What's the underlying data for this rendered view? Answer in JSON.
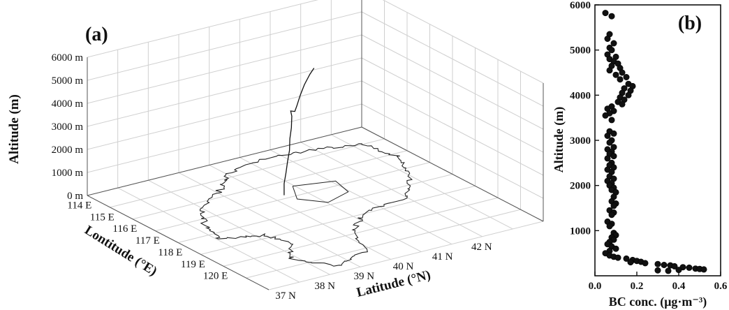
{
  "chart_data": [
    {
      "panel": "(a)",
      "type": "line",
      "projection": "3d",
      "xlabel": "Lontitude (°E)",
      "ylabel": "Latitude (°N)",
      "zlabel": "Altitude (m)",
      "x_ticks": [
        "114 E",
        "115 E",
        "116 E",
        "117 E",
        "118 E",
        "119 E",
        "120 E"
      ],
      "y_ticks": [
        "37 N",
        "38 N",
        "39 N",
        "40 N",
        "41 N",
        "42 N"
      ],
      "z_ticks": [
        "0 m",
        "1000 m",
        "2000 m",
        "3000 m",
        "4000 m",
        "5000 m",
        "6000 m"
      ],
      "xlim": [
        113.5,
        121.5
      ],
      "ylim": [
        36.5,
        43.5
      ],
      "zlim": [
        0,
        6000
      ],
      "grid": true,
      "series": [
        {
          "values": [
            [
              116.3,
              39.9,
              0
            ],
            [
              116.3,
              39.9,
              500
            ],
            [
              116.35,
              39.92,
              1000
            ],
            [
              116.4,
              39.93,
              1500
            ],
            [
              116.45,
              39.95,
              2000
            ],
            [
              116.45,
              39.96,
              2500
            ],
            [
              116.5,
              39.97,
              3000
            ],
            [
              116.5,
              39.98,
              3500
            ],
            [
              116.45,
              39.98,
              3700
            ],
            [
              116.6,
              40.0,
              3750
            ],
            [
              116.65,
              40.02,
              4000
            ],
            [
              116.75,
              40.05,
              4500
            ],
            [
              116.85,
              40.1,
              5000
            ],
            [
              117.0,
              40.15,
              5500
            ],
            [
              117.1,
              40.2,
              5800
            ]
          ]
        }
      ]
    },
    {
      "panel": "(b)",
      "type": "scatter",
      "xlabel": "BC conc. (μg·m⁻³)",
      "ylabel": "Altitude (m)",
      "xlim": [
        0,
        0.6
      ],
      "ylim": [
        0,
        6000
      ],
      "x_ticks": [
        "0.0",
        "0.2",
        "0.4",
        "0.6"
      ],
      "y_ticks": [
        "1000",
        "2000",
        "3000",
        "4000",
        "5000",
        "6000"
      ],
      "series": [
        {
          "values": [
            [
              0.05,
              5820
            ],
            [
              0.08,
              5750
            ],
            [
              0.07,
              5350
            ],
            [
              0.06,
              5250
            ],
            [
              0.09,
              5150
            ],
            [
              0.07,
              5050
            ],
            [
              0.08,
              5000
            ],
            [
              0.06,
              4900
            ],
            [
              0.1,
              4850
            ],
            [
              0.07,
              4800
            ],
            [
              0.09,
              4750
            ],
            [
              0.11,
              4700
            ],
            [
              0.08,
              4650
            ],
            [
              0.12,
              4600
            ],
            [
              0.07,
              4550
            ],
            [
              0.13,
              4500
            ],
            [
              0.1,
              4450
            ],
            [
              0.15,
              4400
            ],
            [
              0.12,
              4350
            ],
            [
              0.16,
              4250
            ],
            [
              0.18,
              4200
            ],
            [
              0.14,
              4150
            ],
            [
              0.17,
              4100
            ],
            [
              0.13,
              4050
            ],
            [
              0.16,
              4000
            ],
            [
              0.12,
              3950
            ],
            [
              0.14,
              3900
            ],
            [
              0.11,
              3850
            ],
            [
              0.13,
              3800
            ],
            [
              0.08,
              3750
            ],
            [
              0.06,
              3700
            ],
            [
              0.09,
              3650
            ],
            [
              0.07,
              3600
            ],
            [
              0.05,
              3550
            ],
            [
              0.08,
              3450
            ],
            [
              0.07,
              3200
            ],
            [
              0.09,
              3150
            ],
            [
              0.06,
              3100
            ],
            [
              0.08,
              3000
            ],
            [
              0.07,
              2950
            ],
            [
              0.09,
              2850
            ],
            [
              0.06,
              2800
            ],
            [
              0.08,
              2750
            ],
            [
              0.07,
              2700
            ],
            [
              0.09,
              2650
            ],
            [
              0.06,
              2600
            ],
            [
              0.08,
              2500
            ],
            [
              0.07,
              2450
            ],
            [
              0.09,
              2400
            ],
            [
              0.06,
              2350
            ],
            [
              0.08,
              2300
            ],
            [
              0.07,
              2200
            ],
            [
              0.09,
              2150
            ],
            [
              0.06,
              2100
            ],
            [
              0.08,
              2050
            ],
            [
              0.07,
              2000
            ],
            [
              0.09,
              1950
            ],
            [
              0.08,
              1900
            ],
            [
              0.1,
              1850
            ],
            [
              0.09,
              1750
            ],
            [
              0.08,
              1650
            ],
            [
              0.1,
              1600
            ],
            [
              0.09,
              1550
            ],
            [
              0.07,
              1450
            ],
            [
              0.09,
              1400
            ],
            [
              0.08,
              1350
            ],
            [
              0.06,
              1200
            ],
            [
              0.08,
              1150
            ],
            [
              0.07,
              1100
            ],
            [
              0.09,
              950
            ],
            [
              0.1,
              900
            ],
            [
              0.08,
              850
            ],
            [
              0.09,
              800
            ],
            [
              0.07,
              750
            ],
            [
              0.06,
              700
            ],
            [
              0.08,
              650
            ],
            [
              0.1,
              600
            ],
            [
              0.07,
              550
            ],
            [
              0.05,
              500
            ],
            [
              0.07,
              450
            ],
            [
              0.09,
              420
            ],
            [
              0.11,
              400
            ],
            [
              0.15,
              380
            ],
            [
              0.18,
              350
            ],
            [
              0.2,
              330
            ],
            [
              0.22,
              310
            ],
            [
              0.17,
              300
            ],
            [
              0.24,
              280
            ],
            [
              0.3,
              260
            ],
            [
              0.33,
              240
            ],
            [
              0.36,
              230
            ],
            [
              0.38,
              210
            ],
            [
              0.42,
              190
            ],
            [
              0.45,
              180
            ],
            [
              0.48,
              160
            ],
            [
              0.5,
              150
            ],
            [
              0.52,
              140
            ],
            [
              0.4,
              130
            ],
            [
              0.3,
              120
            ],
            [
              0.35,
              110
            ]
          ]
        }
      ]
    }
  ]
}
